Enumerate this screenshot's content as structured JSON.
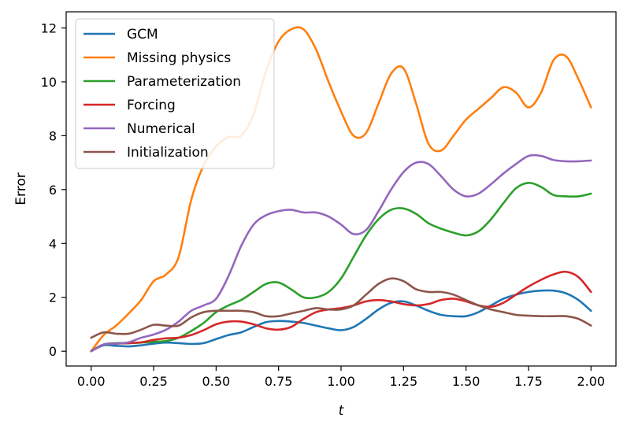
{
  "chart_data": {
    "type": "line",
    "title": "",
    "xlabel": "t",
    "ylabel": "Error",
    "xlim": [
      -0.1,
      2.1
    ],
    "ylim": [
      -0.55,
      12.6
    ],
    "xticks": [
      "0.00",
      "0.25",
      "0.50",
      "0.75",
      "1.00",
      "1.25",
      "1.50",
      "1.75",
      "2.00"
    ],
    "yticks": [
      "0",
      "2",
      "4",
      "6",
      "8",
      "10",
      "12"
    ],
    "grid": false,
    "legend_position": "upper-left",
    "series": [
      {
        "name": "GCM",
        "color": "#1f77b4",
        "x": [
          0.0,
          0.05,
          0.1,
          0.15,
          0.2,
          0.25,
          0.3,
          0.35,
          0.4,
          0.45,
          0.5,
          0.55,
          0.6,
          0.65,
          0.7,
          0.75,
          0.8,
          0.85,
          0.9,
          0.95,
          1.0,
          1.05,
          1.1,
          1.15,
          1.2,
          1.25,
          1.3,
          1.35,
          1.4,
          1.45,
          1.5,
          1.55,
          1.6,
          1.65,
          1.7,
          1.75,
          1.8,
          1.85,
          1.9,
          1.95,
          2.0
        ],
        "y": [
          0.0,
          0.22,
          0.2,
          0.18,
          0.22,
          0.28,
          0.32,
          0.3,
          0.27,
          0.3,
          0.45,
          0.6,
          0.7,
          0.9,
          1.08,
          1.12,
          1.1,
          1.05,
          0.95,
          0.85,
          0.78,
          0.9,
          1.2,
          1.55,
          1.8,
          1.85,
          1.7,
          1.5,
          1.35,
          1.3,
          1.3,
          1.45,
          1.7,
          1.95,
          2.1,
          2.2,
          2.25,
          2.25,
          2.15,
          1.9,
          1.5
        ]
      },
      {
        "name": "Missing physics",
        "color": "#ff7f0e",
        "x": [
          0.0,
          0.05,
          0.1,
          0.15,
          0.2,
          0.25,
          0.3,
          0.35,
          0.4,
          0.45,
          0.5,
          0.55,
          0.6,
          0.65,
          0.7,
          0.75,
          0.8,
          0.85,
          0.9,
          0.95,
          1.0,
          1.05,
          1.1,
          1.15,
          1.2,
          1.25,
          1.3,
          1.35,
          1.4,
          1.45,
          1.5,
          1.55,
          1.6,
          1.65,
          1.7,
          1.75,
          1.8,
          1.85,
          1.9,
          1.95,
          2.0
        ],
        "y": [
          0.0,
          0.6,
          0.95,
          1.4,
          1.9,
          2.6,
          2.85,
          3.5,
          5.6,
          6.9,
          7.6,
          7.95,
          8.0,
          8.8,
          10.4,
          11.5,
          11.95,
          11.95,
          11.2,
          10.0,
          8.9,
          8.0,
          8.1,
          9.2,
          10.3,
          10.5,
          9.2,
          7.7,
          7.45,
          8.0,
          8.6,
          9.0,
          9.4,
          9.8,
          9.6,
          9.05,
          9.6,
          10.8,
          10.95,
          10.1,
          9.05
        ]
      },
      {
        "name": "Parameterization",
        "color": "#2ca02c",
        "x": [
          0.0,
          0.05,
          0.1,
          0.15,
          0.2,
          0.25,
          0.3,
          0.35,
          0.4,
          0.45,
          0.5,
          0.55,
          0.6,
          0.65,
          0.7,
          0.75,
          0.8,
          0.85,
          0.9,
          0.95,
          1.0,
          1.05,
          1.1,
          1.15,
          1.2,
          1.25,
          1.3,
          1.35,
          1.4,
          1.45,
          1.5,
          1.55,
          1.6,
          1.65,
          1.7,
          1.75,
          1.8,
          1.85,
          1.9,
          1.95,
          2.0
        ],
        "y": [
          0.0,
          0.25,
          0.3,
          0.3,
          0.32,
          0.35,
          0.38,
          0.5,
          0.75,
          1.05,
          1.45,
          1.7,
          1.9,
          2.2,
          2.5,
          2.55,
          2.3,
          2.0,
          2.0,
          2.2,
          2.7,
          3.5,
          4.3,
          4.9,
          5.25,
          5.3,
          5.1,
          4.75,
          4.55,
          4.4,
          4.3,
          4.45,
          4.9,
          5.5,
          6.05,
          6.25,
          6.1,
          5.8,
          5.75,
          5.75,
          5.85
        ]
      },
      {
        "name": "Forcing",
        "color": "#d62728",
        "x": [
          0.0,
          0.05,
          0.1,
          0.15,
          0.2,
          0.25,
          0.3,
          0.35,
          0.4,
          0.45,
          0.5,
          0.55,
          0.6,
          0.65,
          0.7,
          0.75,
          0.8,
          0.85,
          0.9,
          0.95,
          1.0,
          1.05,
          1.1,
          1.15,
          1.2,
          1.25,
          1.3,
          1.35,
          1.4,
          1.45,
          1.5,
          1.55,
          1.6,
          1.65,
          1.7,
          1.75,
          1.8,
          1.85,
          1.9,
          1.95,
          2.0
        ],
        "y": [
          0.0,
          0.25,
          0.28,
          0.3,
          0.33,
          0.42,
          0.48,
          0.5,
          0.6,
          0.78,
          1.0,
          1.1,
          1.1,
          1.0,
          0.85,
          0.8,
          0.9,
          1.2,
          1.45,
          1.55,
          1.6,
          1.7,
          1.85,
          1.9,
          1.85,
          1.75,
          1.7,
          1.75,
          1.9,
          1.95,
          1.85,
          1.7,
          1.65,
          1.8,
          2.1,
          2.4,
          2.65,
          2.85,
          2.95,
          2.75,
          2.2
        ]
      },
      {
        "name": "Numerical",
        "color": "#9467bd",
        "x": [
          0.0,
          0.05,
          0.1,
          0.15,
          0.2,
          0.25,
          0.3,
          0.35,
          0.4,
          0.45,
          0.5,
          0.55,
          0.6,
          0.65,
          0.7,
          0.75,
          0.8,
          0.85,
          0.9,
          0.95,
          1.0,
          1.05,
          1.1,
          1.15,
          1.2,
          1.25,
          1.3,
          1.35,
          1.4,
          1.45,
          1.5,
          1.55,
          1.6,
          1.65,
          1.7,
          1.75,
          1.8,
          1.85,
          1.9,
          1.95,
          2.0
        ],
        "y": [
          0.0,
          0.25,
          0.28,
          0.33,
          0.5,
          0.62,
          0.8,
          1.1,
          1.5,
          1.7,
          1.95,
          2.8,
          3.9,
          4.7,
          5.05,
          5.2,
          5.25,
          5.15,
          5.15,
          5.0,
          4.7,
          4.35,
          4.5,
          5.2,
          6.0,
          6.65,
          7.0,
          6.95,
          6.5,
          6.0,
          5.75,
          5.85,
          6.2,
          6.6,
          6.95,
          7.25,
          7.25,
          7.1,
          7.05,
          7.05,
          7.08
        ]
      },
      {
        "name": "Initialization",
        "color": "#8c564b",
        "x": [
          0.0,
          0.05,
          0.1,
          0.15,
          0.2,
          0.25,
          0.3,
          0.35,
          0.4,
          0.45,
          0.5,
          0.55,
          0.6,
          0.65,
          0.7,
          0.75,
          0.8,
          0.85,
          0.9,
          0.95,
          1.0,
          1.05,
          1.1,
          1.15,
          1.2,
          1.25,
          1.3,
          1.35,
          1.4,
          1.45,
          1.5,
          1.55,
          1.6,
          1.65,
          1.7,
          1.75,
          1.8,
          1.85,
          1.9,
          1.95,
          2.0
        ],
        "y": [
          0.5,
          0.7,
          0.65,
          0.65,
          0.8,
          0.98,
          0.95,
          0.95,
          1.25,
          1.45,
          1.5,
          1.5,
          1.5,
          1.45,
          1.3,
          1.3,
          1.4,
          1.5,
          1.6,
          1.55,
          1.55,
          1.7,
          2.1,
          2.5,
          2.7,
          2.6,
          2.3,
          2.2,
          2.2,
          2.1,
          1.9,
          1.7,
          1.55,
          1.45,
          1.35,
          1.32,
          1.3,
          1.3,
          1.3,
          1.2,
          0.95
        ]
      }
    ]
  }
}
